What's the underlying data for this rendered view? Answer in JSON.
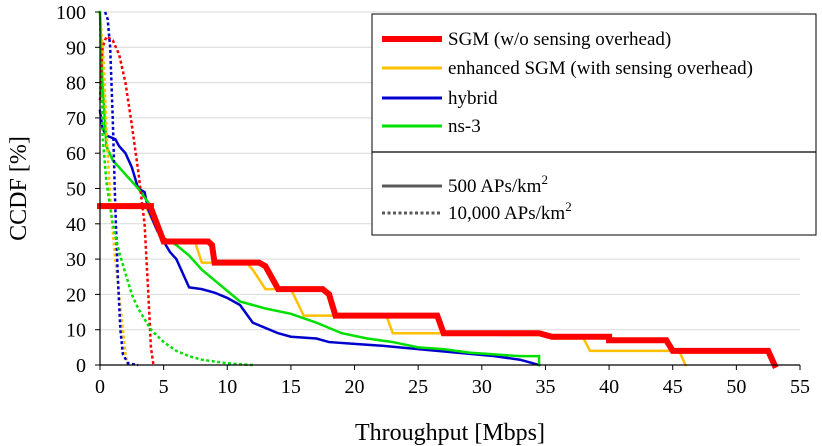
{
  "chart_data": {
    "type": "line",
    "xlabel": "Throughput [Mbps]",
    "ylabel": "CCDF [%]",
    "xlim": [
      0,
      55
    ],
    "ylim": [
      0,
      100
    ],
    "xticks": [
      0,
      5,
      10,
      15,
      20,
      25,
      30,
      35,
      40,
      45,
      50,
      55
    ],
    "yticks": [
      0,
      10,
      20,
      30,
      40,
      50,
      60,
      70,
      80,
      90,
      100
    ],
    "xtick_labels": [
      "0",
      "5",
      "10",
      "15",
      "20",
      "25",
      "30",
      "35",
      "40",
      "45",
      "50",
      "55"
    ],
    "ytick_labels": [
      "0",
      "10",
      "20",
      "30",
      "40",
      "50",
      "60",
      "70",
      "80",
      "90",
      "100"
    ],
    "legend": {
      "placement": "top-right",
      "entries": [
        {
          "label": "SGM (w/o sensing overhead)",
          "color": "#ff0000",
          "style": "thick"
        },
        {
          "label": "enhanced SGM (with sensing overhead)",
          "color": "#ffc000",
          "style": "solid"
        },
        {
          "label": "hybrid",
          "color": "#0000cc",
          "style": "solid"
        },
        {
          "label": "ns-3",
          "color": "#00e000",
          "style": "solid"
        }
      ],
      "density_entries": [
        {
          "label": "500 APs/km",
          "sup": "2",
          "style": "solid"
        },
        {
          "label": "10,000 APs/km",
          "sup": "2",
          "style": "dotted"
        }
      ]
    },
    "series": [
      {
        "name": "SGM (w/o sensing overhead)",
        "density": "500 APs/km2",
        "color": "#ff0000",
        "width": 6,
        "dash": false,
        "points": [
          [
            0,
            45
          ],
          [
            4,
            45
          ],
          [
            4,
            44.5
          ],
          [
            5,
            35
          ],
          [
            8.5,
            35
          ],
          [
            8.8,
            34
          ],
          [
            9,
            29
          ],
          [
            12.5,
            29
          ],
          [
            13,
            28
          ],
          [
            14,
            21.5
          ],
          [
            17.5,
            21.5
          ],
          [
            18,
            20
          ],
          [
            18.5,
            14
          ],
          [
            26.5,
            14
          ],
          [
            27,
            9
          ],
          [
            34.5,
            9
          ],
          [
            35.5,
            8
          ],
          [
            40,
            8
          ],
          [
            40,
            7
          ],
          [
            44.5,
            7
          ],
          [
            45,
            4
          ],
          [
            52.5,
            4
          ],
          [
            53,
            0
          ]
        ]
      },
      {
        "name": "enhanced SGM (with sensing overhead)",
        "density": "500 APs/km2",
        "color": "#ffc000",
        "width": 2.5,
        "dash": false,
        "points": [
          [
            0,
            45.5
          ],
          [
            3.5,
            45.5
          ],
          [
            5,
            34.5
          ],
          [
            7.5,
            34.5
          ],
          [
            8,
            29
          ],
          [
            11.5,
            29
          ],
          [
            12,
            27
          ],
          [
            13,
            21.5
          ],
          [
            15,
            21.5
          ],
          [
            16,
            14
          ],
          [
            22.5,
            14
          ],
          [
            23,
            9
          ],
          [
            31,
            9
          ],
          [
            31.5,
            8.5
          ],
          [
            35,
            8.5
          ],
          [
            35.5,
            7.5
          ],
          [
            38,
            7.5
          ],
          [
            38.5,
            4
          ],
          [
            45.5,
            4
          ],
          [
            46,
            0
          ]
        ]
      },
      {
        "name": "hybrid",
        "density": "500 APs/km2",
        "color": "#0000cc",
        "width": 2.5,
        "dash": false,
        "points": [
          [
            0,
            72
          ],
          [
            0.2,
            67
          ],
          [
            0.5,
            65
          ],
          [
            1.2,
            64
          ],
          [
            1.5,
            62
          ],
          [
            2,
            60
          ],
          [
            2.5,
            56
          ],
          [
            3,
            50
          ],
          [
            3.5,
            49
          ],
          [
            3.8,
            44
          ],
          [
            4.5,
            38
          ],
          [
            5,
            35
          ],
          [
            5.5,
            32
          ],
          [
            6,
            30
          ],
          [
            6.5,
            26
          ],
          [
            7,
            22
          ],
          [
            8,
            21.5
          ],
          [
            9,
            20.5
          ],
          [
            10,
            19
          ],
          [
            11,
            17
          ],
          [
            12,
            12
          ],
          [
            13,
            10.5
          ],
          [
            14,
            9
          ],
          [
            15,
            8
          ],
          [
            17,
            7.5
          ],
          [
            18,
            6.5
          ],
          [
            20,
            6
          ],
          [
            22,
            5.5
          ],
          [
            25,
            4.5
          ],
          [
            28,
            3.5
          ],
          [
            31,
            2.5
          ],
          [
            33,
            1.5
          ],
          [
            34.5,
            0
          ]
        ]
      },
      {
        "name": "ns-3",
        "density": "500 APs/km2",
        "color": "#00e000",
        "width": 2.5,
        "dash": false,
        "points": [
          [
            0,
            100
          ],
          [
            0.2,
            80
          ],
          [
            0.5,
            62
          ],
          [
            1,
            58
          ],
          [
            1.5,
            56
          ],
          [
            2.5,
            52
          ],
          [
            3,
            50
          ],
          [
            4,
            45
          ],
          [
            4.5,
            40
          ],
          [
            5,
            36
          ],
          [
            6,
            34
          ],
          [
            7,
            31
          ],
          [
            8,
            27
          ],
          [
            9,
            24
          ],
          [
            10,
            21
          ],
          [
            11,
            18
          ],
          [
            12,
            17
          ],
          [
            13,
            16
          ],
          [
            15,
            14.5
          ],
          [
            17,
            12
          ],
          [
            19,
            9
          ],
          [
            21,
            7.5
          ],
          [
            23,
            6.5
          ],
          [
            25,
            5
          ],
          [
            27,
            4.5
          ],
          [
            29,
            3.5
          ],
          [
            31,
            3
          ],
          [
            33,
            2.5
          ],
          [
            34.5,
            2.5
          ],
          [
            34.5,
            0
          ]
        ]
      },
      {
        "name": "SGM (w/o sensing overhead)",
        "density": "10,000 APs/km2",
        "color": "#ff0000",
        "width": 2.5,
        "dash": true,
        "points": [
          [
            0,
            75
          ],
          [
            0.2,
            90
          ],
          [
            0.5,
            93
          ],
          [
            1,
            92
          ],
          [
            1.5,
            88
          ],
          [
            2,
            80
          ],
          [
            2.5,
            68
          ],
          [
            3,
            55
          ],
          [
            3.5,
            40
          ],
          [
            3.8,
            20
          ],
          [
            4,
            5
          ],
          [
            4.2,
            0
          ]
        ]
      },
      {
        "name": "enhanced SGM (with sensing overhead)",
        "density": "10,000 APs/km2",
        "color": "#ffc000",
        "width": 2.5,
        "dash": true,
        "points": [
          [
            0,
            100
          ],
          [
            0.3,
            85
          ],
          [
            0.6,
            60
          ],
          [
            0.9,
            42
          ],
          [
            1.2,
            30
          ],
          [
            1.5,
            20
          ],
          [
            1.8,
            10
          ],
          [
            2,
            3
          ],
          [
            2.2,
            0
          ]
        ]
      },
      {
        "name": "hybrid",
        "density": "10,000 APs/km2",
        "color": "#0000cc",
        "width": 2.5,
        "dash": true,
        "points": [
          [
            0.4,
            100
          ],
          [
            0.6,
            98
          ],
          [
            0.8,
            90
          ],
          [
            1,
            70
          ],
          [
            1.2,
            45
          ],
          [
            1.4,
            25
          ],
          [
            1.6,
            10
          ],
          [
            1.8,
            3
          ],
          [
            2.2,
            0.5
          ],
          [
            3,
            0
          ]
        ]
      },
      {
        "name": "ns-3",
        "density": "10,000 APs/km2",
        "color": "#00e000",
        "width": 2.5,
        "dash": true,
        "points": [
          [
            0,
            100
          ],
          [
            0.2,
            65
          ],
          [
            0.5,
            52
          ],
          [
            1,
            40
          ],
          [
            1.5,
            32
          ],
          [
            2,
            26
          ],
          [
            2.5,
            20
          ],
          [
            3,
            16
          ],
          [
            4,
            10
          ],
          [
            5,
            6.5
          ],
          [
            6,
            4
          ],
          [
            7,
            2.5
          ],
          [
            8,
            1.5
          ],
          [
            9,
            1
          ],
          [
            10,
            0.5
          ],
          [
            11,
            0.2
          ],
          [
            12,
            0
          ]
        ]
      }
    ]
  }
}
